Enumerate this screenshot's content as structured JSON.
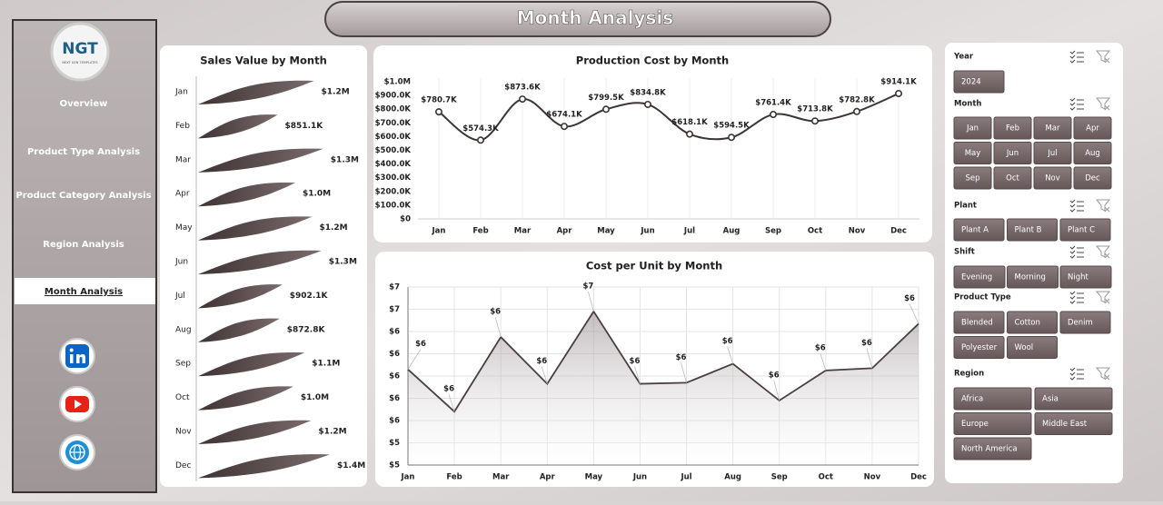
{
  "header": {
    "title": "Month Analysis"
  },
  "logo": {
    "text": "NGT",
    "tagline": "NEXT GEN TEMPLATES"
  },
  "nav": {
    "items": [
      "Overview",
      "Product Type Analysis",
      "Product Category Analysis",
      "Region Analysis",
      "Month Analysis"
    ],
    "active": 4
  },
  "chart_data": [
    {
      "type": "bar",
      "orientation": "horizontal",
      "title": "Sales Value by Month",
      "color": "#5a4b4c",
      "categories": [
        "Jan",
        "Feb",
        "Mar",
        "Apr",
        "May",
        "Jun",
        "Jul",
        "Aug",
        "Sep",
        "Oct",
        "Nov",
        "Dec"
      ],
      "values": [
        1240000,
        851100,
        1340000,
        1040000,
        1220000,
        1320000,
        902100,
        872800,
        1140000,
        1020000,
        1210000,
        1410000
      ],
      "value_labels": [
        "$1.2M",
        "$851.1K",
        "$1.3M",
        "$1.0M",
        "$1.2M",
        "$1.3M",
        "$902.1K",
        "$872.8K",
        "$1.1M",
        "$1.0M",
        "$1.2M",
        "$1.4M"
      ]
    },
    {
      "type": "line",
      "title": "Production Cost by Month",
      "color": "#3d3435",
      "categories": [
        "Jan",
        "Feb",
        "Mar",
        "Apr",
        "May",
        "Jun",
        "Jul",
        "Aug",
        "Sep",
        "Oct",
        "Nov",
        "Dec"
      ],
      "values": [
        780700,
        574300,
        873600,
        674100,
        799500,
        834800,
        618100,
        594500,
        761400,
        713800,
        782800,
        914100
      ],
      "value_labels": [
        "$780.7K",
        "$574.3K",
        "$873.6K",
        "$674.1K",
        "$799.5K",
        "$834.8K",
        "$618.1K",
        "$594.5K",
        "$761.4K",
        "$713.8K",
        "$782.8K",
        "$914.1K"
      ],
      "ylim": [
        0,
        1000000
      ],
      "yticks": [
        {
          "value": 0,
          "label": "$0"
        },
        {
          "value": 100000,
          "label": "$100.0K"
        },
        {
          "value": 200000,
          "label": "$200.0K"
        },
        {
          "value": 300000,
          "label": "$300.0K"
        },
        {
          "value": 400000,
          "label": "$400.0K"
        },
        {
          "value": 500000,
          "label": "$500.0K"
        },
        {
          "value": 600000,
          "label": "$600.0K"
        },
        {
          "value": 700000,
          "label": "$700.0K"
        },
        {
          "value": 800000,
          "label": "$800.0K"
        },
        {
          "value": 900000,
          "label": "$900.0K"
        },
        {
          "value": 1000000,
          "label": "$1.0M"
        }
      ],
      "grid": false
    },
    {
      "type": "area",
      "title": "Cost per Unit by Month",
      "color": "#4a3e40",
      "categories": [
        "Jan",
        "Feb",
        "Mar",
        "Apr",
        "May",
        "Jun",
        "Jul",
        "Aug",
        "Sep",
        "Oct",
        "Nov",
        "Dec"
      ],
      "values": [
        6.06,
        5.68,
        6.35,
        5.93,
        6.58,
        5.93,
        5.94,
        6.11,
        5.78,
        6.05,
        6.07,
        6.47
      ],
      "value_labels": [
        "$6",
        "$6",
        "$6",
        "$6",
        "$7",
        "$6",
        "$6",
        "$6",
        "$6",
        "$6",
        "$6",
        "$6"
      ],
      "ylim": [
        5.2,
        6.8
      ],
      "yticks": [
        {
          "value": 5.2,
          "label": "$5"
        },
        {
          "value": 5.4,
          "label": "$5"
        },
        {
          "value": 5.6,
          "label": "$6"
        },
        {
          "value": 5.8,
          "label": "$6"
        },
        {
          "value": 6.0,
          "label": "$6"
        },
        {
          "value": 6.2,
          "label": "$6"
        },
        {
          "value": 6.4,
          "label": "$6"
        },
        {
          "value": 6.6,
          "label": "$7"
        },
        {
          "value": 6.8,
          "label": "$7"
        }
      ],
      "grid": true
    }
  ],
  "slicers": [
    {
      "title": "Year",
      "items": [
        "2024"
      ]
    },
    {
      "title": "Month",
      "items": [
        "Jan",
        "Feb",
        "Mar",
        "Apr",
        "May",
        "Jun",
        "Jul",
        "Aug",
        "Sep",
        "Oct",
        "Nov",
        "Dec"
      ]
    },
    {
      "title": "Plant",
      "items": [
        "Plant A",
        "Plant B",
        "Plant C"
      ]
    },
    {
      "title": "Shift",
      "items": [
        "Evening",
        "Morning",
        "Night"
      ]
    },
    {
      "title": "Product Type",
      "items": [
        "Blended",
        "Cotton",
        "Denim",
        "Polyester",
        "Wool"
      ]
    },
    {
      "title": "Region",
      "items": [
        "Africa",
        "Asia",
        "Europe",
        "Middle East",
        "North America"
      ]
    }
  ]
}
